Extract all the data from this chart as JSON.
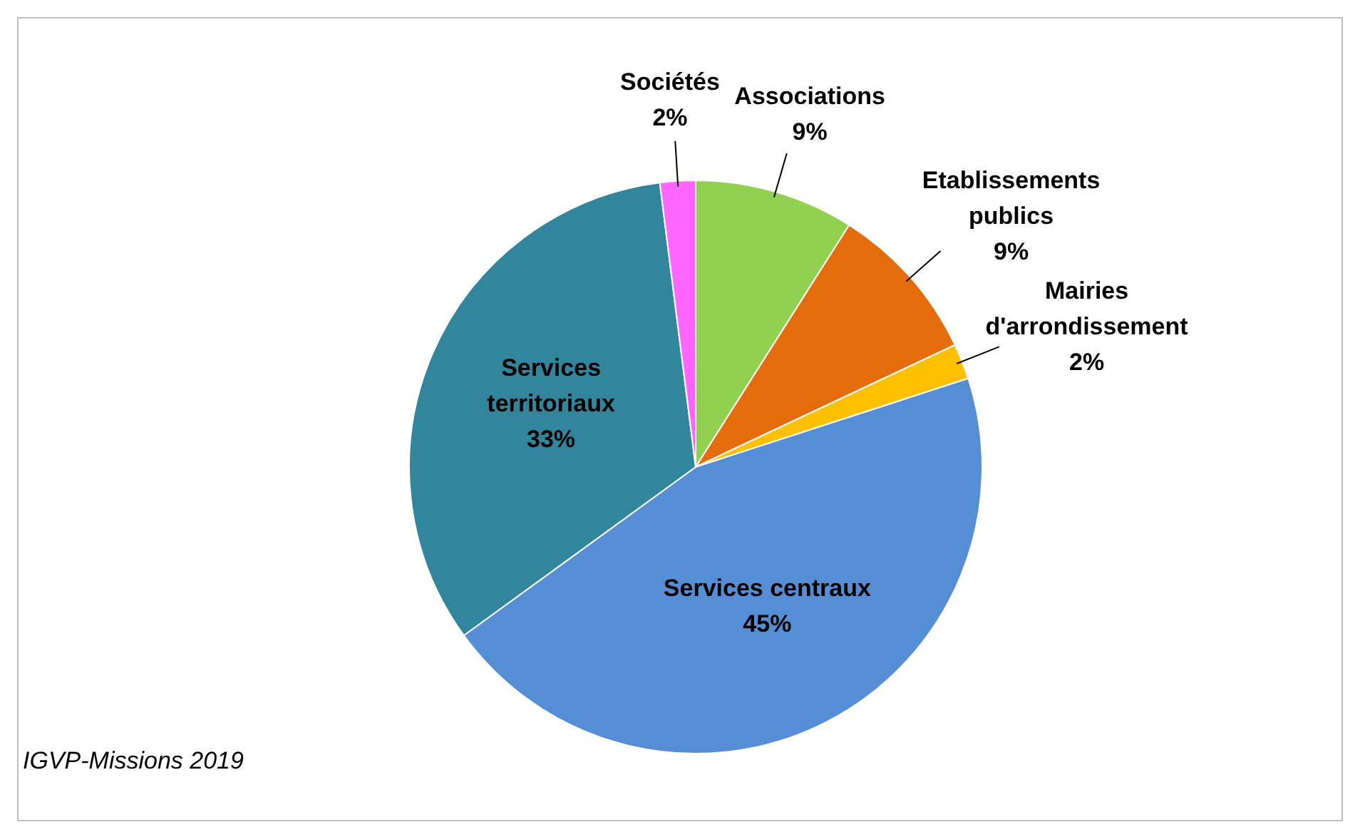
{
  "chart_data": {
    "type": "pie",
    "categories": [
      "Associations",
      "Etablissements publics",
      "Mairies d'arrondissement",
      "Services centraux",
      "Services territoriaux",
      "Sociétés"
    ],
    "values": [
      9,
      9,
      2,
      45,
      33,
      2
    ],
    "colors": [
      "#92d050",
      "#e46c0a",
      "#ffc000",
      "#558ed5",
      "#31859c",
      "#ff66ff"
    ],
    "value_labels": [
      "9%",
      "9%",
      "2%",
      "45%",
      "33%",
      "2%"
    ],
    "annotations": [
      "IGVP-Missions 2019"
    ]
  }
}
